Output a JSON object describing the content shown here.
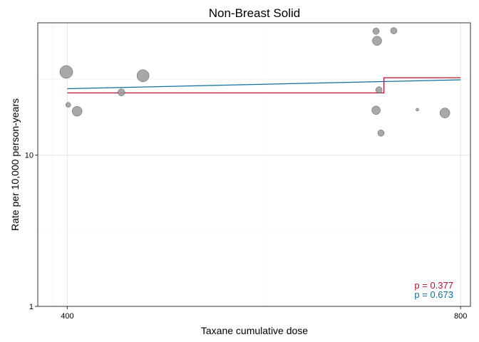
{
  "chart_data": {
    "type": "scatter",
    "title": "Non-Breast Solid",
    "xlabel": "Taxane cumulative dose",
    "ylabel": "Rate per 10,000 person-years",
    "xlim": [
      370,
      810
    ],
    "ylim": [
      1,
      75
    ],
    "yscale": "log",
    "grid": true,
    "x_ticks": [
      400,
      800
    ],
    "x_tick_labels": [
      "400",
      "800"
    ],
    "y_ticks": [
      1,
      10
    ],
    "y_tick_labels": [
      "1",
      "10"
    ],
    "points": [
      {
        "x": 399,
        "y": 35.5,
        "size": 9
      },
      {
        "x": 401,
        "y": 21.5,
        "size": 3.5
      },
      {
        "x": 410,
        "y": 19.5,
        "size": 7
      },
      {
        "x": 455,
        "y": 26.0,
        "size": 5
      },
      {
        "x": 477,
        "y": 33.5,
        "size": 8.5
      },
      {
        "x": 714,
        "y": 66.0,
        "size": 4.5
      },
      {
        "x": 715,
        "y": 57.0,
        "size": 6.5
      },
      {
        "x": 717,
        "y": 27.0,
        "size": 4.5
      },
      {
        "x": 714,
        "y": 19.8,
        "size": 6
      },
      {
        "x": 719,
        "y": 14.0,
        "size": 4.5
      },
      {
        "x": 732,
        "y": 66.5,
        "size": 4.5
      },
      {
        "x": 756,
        "y": 20.0,
        "size": 2
      },
      {
        "x": 784,
        "y": 19.0,
        "size": 7
      }
    ],
    "series": [
      {
        "color": "#c0102a",
        "step": true,
        "x": [
          400,
          722,
          722,
          800
        ],
        "values": [
          25.8,
          25.8,
          32.5,
          32.5
        ]
      },
      {
        "color": "#0b6f9e",
        "step": false,
        "x": [
          400,
          800
        ],
        "values": [
          27.5,
          31.5
        ]
      }
    ],
    "annotations": [
      {
        "text": "p = 0.377",
        "color": "#c0102a"
      },
      {
        "text": "p = 0.673",
        "color": "#0b6f9e"
      }
    ]
  }
}
